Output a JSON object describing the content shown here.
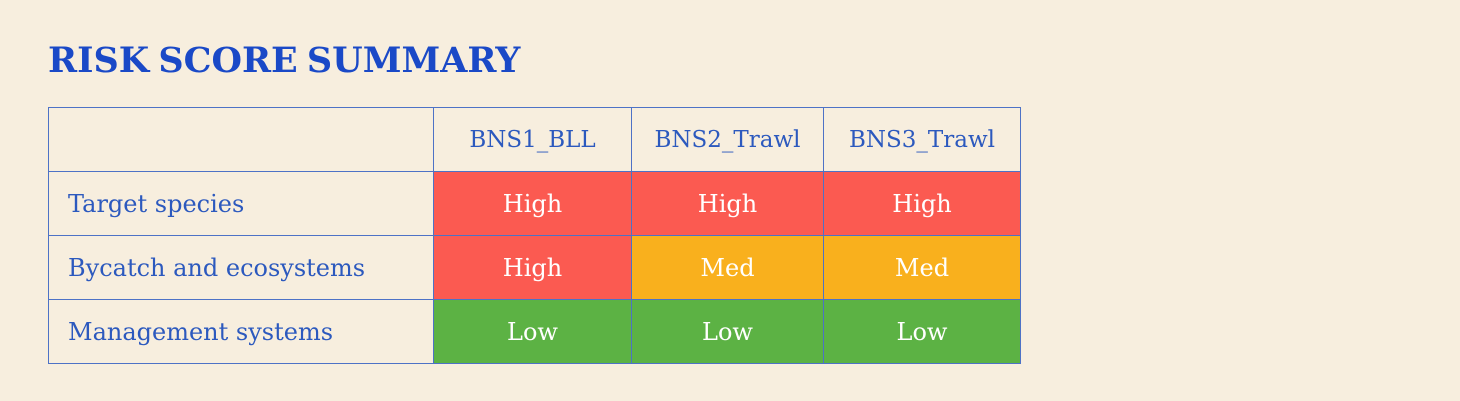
{
  "page": {
    "background": "#f7eede"
  },
  "title": {
    "text": "RISK SCORE SUMMARY"
  },
  "table": {
    "columns": [
      "",
      "BNS1_BLL",
      "BNS2_Trawl",
      "BNS3_Trawl"
    ],
    "rows": [
      {
        "label": "Target species",
        "cells": [
          {
            "text": "High",
            "level": "high"
          },
          {
            "text": "High",
            "level": "high"
          },
          {
            "text": "High",
            "level": "high"
          }
        ]
      },
      {
        "label": "Bycatch and ecosystems",
        "cells": [
          {
            "text": "High",
            "level": "high"
          },
          {
            "text": "Med",
            "level": "med"
          },
          {
            "text": "Med",
            "level": "med"
          }
        ]
      },
      {
        "label": "Management systems",
        "cells": [
          {
            "text": "Low",
            "level": "low"
          },
          {
            "text": "Low",
            "level": "low"
          },
          {
            "text": "Low",
            "level": "low"
          }
        ]
      }
    ]
  },
  "colors": {
    "page_bg": "#f7eede",
    "title": "#1a49c7",
    "label_text": "#2c59be",
    "border": "#4d72c6",
    "cell_text": "#ffffff",
    "high": "#fb5a51",
    "med": "#f9b01d",
    "low": "#5cb244"
  },
  "chart_data": {
    "type": "table",
    "title": "RISK SCORE SUMMARY",
    "columns": [
      "BNS1_BLL",
      "BNS2_Trawl",
      "BNS3_Trawl"
    ],
    "row_labels": [
      "Target species",
      "Bycatch and ecosystems",
      "Management systems"
    ],
    "values": [
      [
        "High",
        "High",
        "High"
      ],
      [
        "High",
        "Med",
        "Med"
      ],
      [
        "Low",
        "Low",
        "Low"
      ]
    ],
    "legend_position": "none",
    "color_coding": {
      "High": "#fb5a51",
      "Med": "#f9b01d",
      "Low": "#5cb244"
    }
  }
}
